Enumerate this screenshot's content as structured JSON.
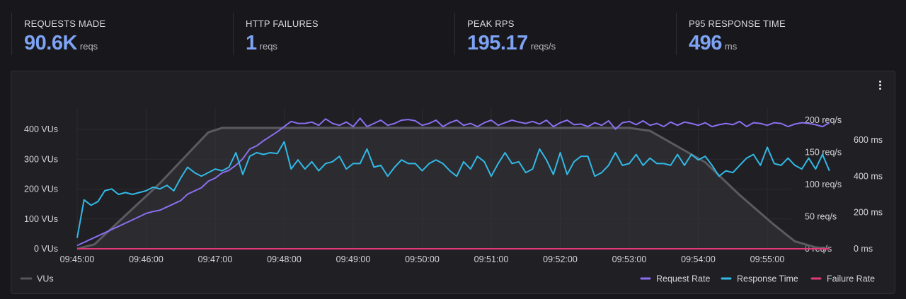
{
  "stats": [
    {
      "label": "REQUESTS MADE",
      "value": "90.6K",
      "unit": "reqs"
    },
    {
      "label": "HTTP FAILURES",
      "value": "1",
      "unit": "reqs"
    },
    {
      "label": "PEAK RPS",
      "value": "195.17",
      "unit": "reqs/s"
    },
    {
      "label": "P95 RESPONSE TIME",
      "value": "496",
      "unit": "ms"
    }
  ],
  "chart_data": {
    "type": "line",
    "title": "",
    "x_ticks": [
      "09:45:00",
      "09:46:00",
      "09:47:00",
      "09:48:00",
      "09:49:00",
      "09:50:00",
      "09:51:00",
      "09:52:00",
      "09:53:00",
      "09:54:00",
      "09:55:00"
    ],
    "y_left": {
      "ticks": [
        "0 VUs",
        "100 VUs",
        "200 VUs",
        "300 VUs",
        "400 VUs"
      ],
      "range": [
        0,
        400
      ]
    },
    "y_right_rps": {
      "ticks": [
        "0 req/s",
        "50 req/s",
        "100 req/s",
        "150 req/s",
        "200 req/s"
      ],
      "range": [
        0,
        200
      ]
    },
    "y_right_ms": {
      "ticks": [
        "0 ms",
        "200 ms",
        "400 ms",
        "600 ms"
      ],
      "range": [
        0,
        600
      ]
    },
    "grid": true,
    "legend_left": [
      {
        "name": "VUs",
        "color": "#55555c"
      }
    ],
    "legend_right": [
      {
        "name": "Request Rate",
        "color": "#8b6ff0"
      },
      {
        "name": "Response Time",
        "color": "#32b9e6"
      },
      {
        "name": "Failure Rate",
        "color": "#e03a7a"
      }
    ],
    "series": [
      {
        "name": "VUs",
        "axis": "vus",
        "color": "#55555c",
        "x_minutes": [
          0,
          0.25,
          1.2,
          1.9,
          2.1,
          8.0,
          8.3,
          9.1,
          9.6,
          10.1,
          10.4,
          10.7,
          10.9
        ],
        "values": [
          0,
          15,
          220,
          390,
          405,
          405,
          395,
          290,
          180,
          80,
          25,
          5,
          0
        ]
      },
      {
        "name": "Request Rate",
        "axis": "rps",
        "color": "#8b6ff0",
        "x_minutes": [
          0,
          0.1,
          0.2,
          0.3,
          0.4,
          0.5,
          0.6,
          0.7,
          0.8,
          0.9,
          1.0,
          1.1,
          1.2,
          1.3,
          1.4,
          1.5,
          1.6,
          1.7,
          1.8,
          1.9,
          2.0,
          2.1,
          2.2,
          2.3,
          2.4,
          2.5,
          2.6,
          2.7,
          2.8,
          2.9,
          3.0,
          3.1,
          3.2,
          3.3,
          3.4,
          3.5,
          3.6,
          3.7,
          3.8,
          3.9,
          4.0,
          4.1,
          4.2,
          4.3,
          4.4,
          4.5,
          4.6,
          4.7,
          4.8,
          4.9,
          5.0,
          5.1,
          5.2,
          5.3,
          5.4,
          5.5,
          5.6,
          5.7,
          5.8,
          5.9,
          6.0,
          6.1,
          6.2,
          6.3,
          6.4,
          6.5,
          6.6,
          6.7,
          6.8,
          6.9,
          7.0,
          7.1,
          7.2,
          7.3,
          7.4,
          7.5,
          7.6,
          7.7,
          7.8,
          7.9,
          8.0,
          8.1,
          8.2,
          8.3,
          8.4,
          8.5,
          8.6,
          8.7,
          8.8,
          8.9,
          9.0,
          9.1,
          9.2,
          9.3,
          9.4,
          9.5,
          9.6,
          9.7,
          9.8,
          9.9,
          10.0,
          10.1,
          10.2,
          10.3,
          10.4,
          10.5,
          10.6,
          10.7,
          10.8,
          10.9
        ],
        "values": [
          5,
          10,
          15,
          20,
          25,
          30,
          35,
          40,
          45,
          50,
          55,
          58,
          60,
          65,
          70,
          75,
          85,
          90,
          95,
          105,
          110,
          118,
          122,
          130,
          140,
          155,
          160,
          168,
          175,
          182,
          190,
          198,
          195,
          195,
          197,
          192,
          202,
          195,
          192,
          197,
          190,
          203,
          190,
          195,
          200,
          192,
          195,
          200,
          201,
          199,
          192,
          195,
          200,
          190,
          196,
          200,
          192,
          195,
          190,
          196,
          200,
          192,
          196,
          200,
          197,
          195,
          198,
          194,
          200,
          190,
          196,
          200,
          193,
          194,
          190,
          196,
          192,
          199,
          186,
          196,
          198,
          193,
          199,
          192,
          195,
          190,
          197,
          192,
          197,
          195,
          192,
          196,
          190,
          193,
          195,
          193,
          198,
          190,
          196,
          195,
          192,
          196,
          195,
          190,
          194,
          196,
          195,
          193,
          190,
          196
        ]
      },
      {
        "name": "Response Time",
        "axis": "ms",
        "color": "#32b9e6",
        "x_minutes": [
          0,
          0.1,
          0.2,
          0.3,
          0.4,
          0.5,
          0.6,
          0.7,
          0.8,
          0.9,
          1.0,
          1.1,
          1.2,
          1.3,
          1.4,
          1.5,
          1.6,
          1.7,
          1.8,
          1.9,
          2.0,
          2.1,
          2.2,
          2.3,
          2.4,
          2.5,
          2.6,
          2.7,
          2.8,
          2.9,
          3.0,
          3.1,
          3.2,
          3.3,
          3.4,
          3.5,
          3.6,
          3.7,
          3.8,
          3.9,
          4.0,
          4.1,
          4.2,
          4.3,
          4.4,
          4.5,
          4.6,
          4.7,
          4.8,
          4.9,
          5.0,
          5.1,
          5.2,
          5.3,
          5.4,
          5.5,
          5.6,
          5.7,
          5.8,
          5.9,
          6.0,
          6.1,
          6.2,
          6.3,
          6.4,
          6.5,
          6.6,
          6.7,
          6.8,
          6.9,
          7.0,
          7.1,
          7.2,
          7.3,
          7.4,
          7.5,
          7.6,
          7.7,
          7.8,
          7.9,
          8.0,
          8.1,
          8.2,
          8.3,
          8.4,
          8.5,
          8.6,
          8.7,
          8.8,
          8.9,
          9.0,
          9.1,
          9.2,
          9.3,
          9.4,
          9.5,
          9.6,
          9.7,
          9.8,
          9.9,
          10.0,
          10.1,
          10.2,
          10.3,
          10.4,
          10.5,
          10.6,
          10.7,
          10.8,
          10.9
        ],
        "values": [
          60,
          270,
          240,
          260,
          320,
          330,
          300,
          310,
          300,
          310,
          320,
          340,
          330,
          350,
          320,
          390,
          450,
          420,
          400,
          420,
          440,
          430,
          450,
          530,
          410,
          510,
          530,
          520,
          530,
          525,
          590,
          440,
          490,
          440,
          480,
          430,
          470,
          480,
          510,
          440,
          470,
          470,
          550,
          450,
          460,
          400,
          450,
          490,
          470,
          470,
          430,
          470,
          490,
          470,
          430,
          400,
          480,
          440,
          510,
          480,
          400,
          470,
          530,
          470,
          480,
          420,
          440,
          550,
          490,
          410,
          530,
          410,
          480,
          510,
          510,
          400,
          420,
          460,
          530,
          460,
          470,
          520,
          460,
          500,
          470,
          470,
          460,
          520,
          460,
          520,
          490,
          510,
          460,
          400,
          430,
          420,
          460,
          500,
          520,
          460,
          560,
          470,
          460,
          500,
          460,
          440,
          500,
          440,
          520,
          430
        ]
      },
      {
        "name": "Failure Rate",
        "axis": "rps",
        "color": "#e03a7a",
        "x_minutes": [
          0,
          10.9
        ],
        "values": [
          0,
          0
        ]
      }
    ]
  }
}
